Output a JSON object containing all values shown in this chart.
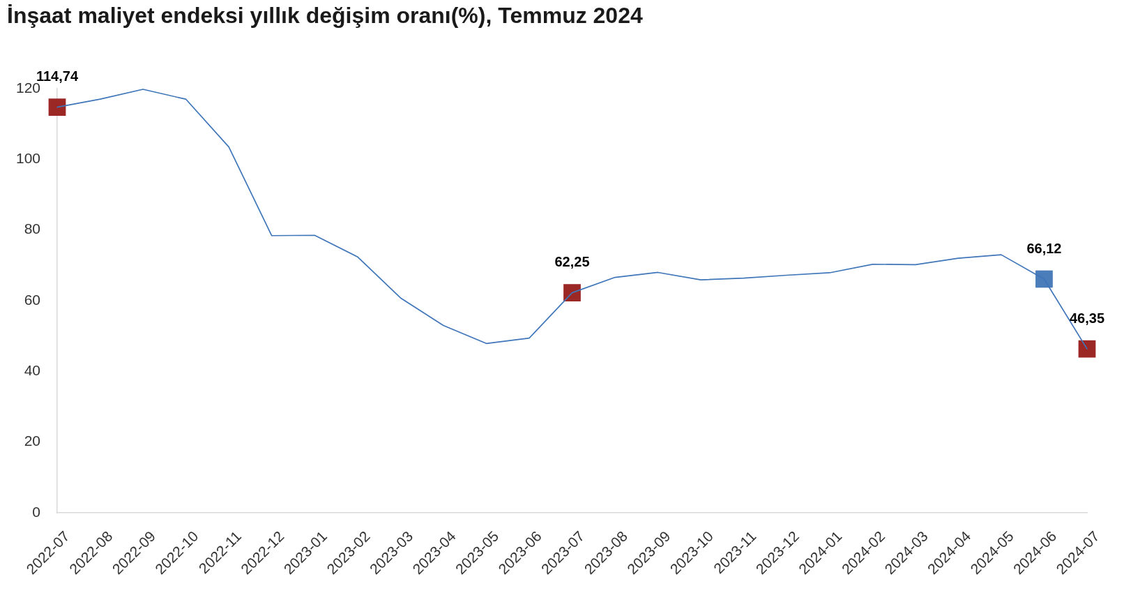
{
  "chart_data": {
    "type": "line",
    "title": "İnşaat maliyet endeksi yıllık değişim oranı(%), Temmuz 2024",
    "categories": [
      "2022-07",
      "2022-08",
      "2022-09",
      "2022-10",
      "2022-11",
      "2022-12",
      "2023-01",
      "2023-02",
      "2023-03",
      "2023-04",
      "2023-05",
      "2023-06",
      "2023-07",
      "2023-08",
      "2023-09",
      "2023-10",
      "2023-11",
      "2023-12",
      "2024-01",
      "2024-02",
      "2024-03",
      "2024-04",
      "2024-05",
      "2024-06",
      "2024-07"
    ],
    "series": [
      {
        "color": "#3f76b9",
        "marker": "none",
        "values": [
          114.74,
          117.0,
          119.8,
          117.0,
          103.5,
          78.4,
          78.5,
          72.4,
          60.8,
          53.0,
          47.9,
          49.4,
          62.25,
          66.6,
          68.0,
          65.9,
          66.4,
          67.2,
          67.9,
          70.3,
          70.2,
          72.0,
          73.0,
          66.12,
          46.35
        ]
      },
      {
        "type": "scatter",
        "marker": "square",
        "values": [
          114.74,
          null,
          null,
          null,
          null,
          null,
          null,
          null,
          null,
          null,
          null,
          null,
          62.25,
          null,
          null,
          null,
          null,
          null,
          null,
          null,
          null,
          null,
          null,
          66.12,
          46.35
        ],
        "colors": [
          "#9b2824",
          null,
          null,
          null,
          null,
          null,
          null,
          null,
          null,
          null,
          null,
          null,
          "#9b2824",
          null,
          null,
          null,
          null,
          null,
          null,
          null,
          null,
          null,
          null,
          "#4a7dba",
          "#9b2824"
        ],
        "value_labels": [
          "114,74",
          null,
          null,
          null,
          null,
          null,
          null,
          null,
          null,
          null,
          null,
          null,
          "62,25",
          null,
          null,
          null,
          null,
          null,
          null,
          null,
          null,
          null,
          null,
          "66,12",
          "46,35"
        ]
      }
    ],
    "ylim": [
      0,
      120
    ],
    "yticks": [
      0,
      20,
      40,
      60,
      80,
      100,
      120
    ]
  }
}
